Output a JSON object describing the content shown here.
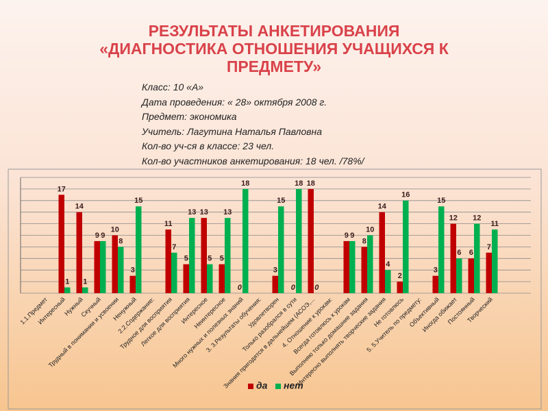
{
  "header": {
    "title": "РЕЗУЛЬТАТЫ АНКЕТИРОВАНИЯ",
    "subtitle": "«ДИАГНОСТИКА ОТНОШЕНИЯ УЧАЩИХСЯ К ПРЕДМЕТУ»"
  },
  "info": [
    "Класс: 10 «А»",
    "Дата проведения: « 28» октября 2008 г.",
    "Предмет: экономика",
    "Учитель: Лагутина Наталья Павловна",
    "Кол-во уч-ся в классе: 23 чел.",
    "Кол-во участников анкетирования: 18 чел. /78%/"
  ],
  "chart_data": {
    "type": "bar",
    "categories": [
      "1.1.Предмет",
      "Интересный",
      "Нужный",
      "Скучный",
      "Трудный в понимании и усвоении",
      "Ненужный",
      "2.2.Содержание:",
      "Трудное для восприятия",
      "Легкое для восприятия",
      "Интересное",
      "Неинтересное",
      "Много нужных и полезных знаний",
      "3. 3.Результаты обучения:",
      "Удовлетворен",
      "Только разобрался в сути",
      "Знания пригодятся в дальнейшем (АСОЭ,...",
      "4. Отношение к урокам:",
      "Всегда готовлюсь к урокам",
      "Выполняю только домашние задания",
      "Интересно выполнять творческие задания",
      "Не готовлюсь",
      "5. 5.Учитель по предмету:",
      "Объективный",
      "Иногда обижает",
      "Постоянный",
      "Творческий"
    ],
    "series": [
      {
        "name": "да",
        "color": "#c00000",
        "values": [
          null,
          17,
          14,
          9,
          10,
          3,
          null,
          11,
          5,
          13,
          5,
          0,
          null,
          3,
          0,
          18,
          null,
          9,
          8,
          14,
          2,
          null,
          3,
          12,
          6,
          7
        ]
      },
      {
        "name": "нет",
        "color": "#00b050",
        "values": [
          null,
          1,
          1,
          9,
          8,
          15,
          null,
          7,
          13,
          5,
          13,
          18,
          null,
          15,
          18,
          0,
          null,
          9,
          10,
          4,
          16,
          null,
          15,
          6,
          12,
          11
        ]
      }
    ],
    "ylim": [
      0,
      20
    ],
    "yticks": [
      0,
      2,
      4,
      6,
      8,
      10,
      12,
      14,
      16,
      18,
      20
    ],
    "grid": true,
    "legend": "bottom"
  }
}
